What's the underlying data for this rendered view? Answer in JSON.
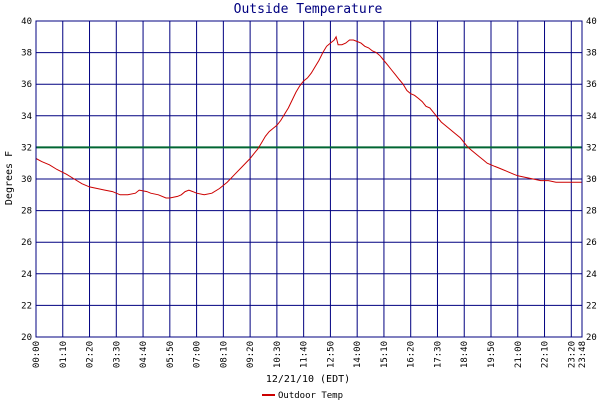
{
  "chart_data": {
    "type": "line",
    "title": "Outside Temperature",
    "xlabel": "12/21/10 (EDT)",
    "ylabel": "Degrees F",
    "ylim": [
      20,
      40
    ],
    "y_ticks": [
      20,
      22,
      24,
      26,
      28,
      30,
      32,
      34,
      36,
      38,
      40
    ],
    "x_ticks": [
      "00:00",
      "01:10",
      "02:20",
      "03:30",
      "04:40",
      "05:50",
      "07:00",
      "08:10",
      "09:20",
      "10:30",
      "11:40",
      "12:50",
      "14:00",
      "15:10",
      "16:20",
      "17:30",
      "18:40",
      "19:50",
      "21:00",
      "22:10",
      "23:20",
      "23:48"
    ],
    "x_tick_minutes": [
      0,
      70,
      140,
      210,
      280,
      350,
      420,
      490,
      560,
      630,
      700,
      770,
      840,
      910,
      980,
      1050,
      1120,
      1190,
      1260,
      1330,
      1400,
      1428
    ],
    "x_range_minutes": [
      0,
      1428
    ],
    "grid": true,
    "freezing_line": 32,
    "legend_position": "bottom-left",
    "series": [
      {
        "name": "Outdoor Temp",
        "color": "#cc0000",
        "x_minutes": [
          0,
          15,
          35,
          55,
          80,
          100,
          120,
          140,
          160,
          180,
          200,
          220,
          240,
          260,
          270,
          290,
          300,
          320,
          340,
          350,
          370,
          380,
          390,
          400,
          410,
          420,
          440,
          460,
          480,
          500,
          520,
          540,
          560,
          570,
          580,
          590,
          600,
          610,
          620,
          630,
          640,
          650,
          660,
          670,
          680,
          690,
          700,
          710,
          720,
          730,
          740,
          750,
          760,
          770,
          780,
          785,
          790,
          800,
          810,
          820,
          830,
          840,
          850,
          860,
          870,
          880,
          890,
          900,
          910,
          920,
          930,
          940,
          950,
          960,
          970,
          980,
          990,
          1000,
          1010,
          1020,
          1030,
          1040,
          1050,
          1060,
          1070,
          1080,
          1090,
          1100,
          1110,
          1120,
          1130,
          1140,
          1150,
          1160,
          1170,
          1180,
          1190,
          1200,
          1210,
          1220,
          1230,
          1240,
          1250,
          1260,
          1280,
          1300,
          1320,
          1340,
          1360,
          1380,
          1400,
          1415,
          1428
        ],
        "values": [
          31.3,
          31.1,
          30.9,
          30.6,
          30.3,
          30.0,
          29.7,
          29.5,
          29.4,
          29.3,
          29.2,
          29.0,
          29.0,
          29.1,
          29.3,
          29.2,
          29.1,
          29.0,
          28.8,
          28.8,
          28.9,
          29.0,
          29.2,
          29.3,
          29.2,
          29.1,
          29.0,
          29.1,
          29.4,
          29.8,
          30.3,
          30.8,
          31.3,
          31.6,
          31.9,
          32.3,
          32.7,
          33.0,
          33.2,
          33.4,
          33.7,
          34.1,
          34.5,
          35.0,
          35.5,
          35.9,
          36.2,
          36.4,
          36.7,
          37.1,
          37.5,
          38.0,
          38.4,
          38.6,
          38.8,
          39.0,
          38.5,
          38.5,
          38.6,
          38.8,
          38.8,
          38.7,
          38.6,
          38.4,
          38.3,
          38.1,
          38.0,
          37.8,
          37.5,
          37.2,
          36.9,
          36.6,
          36.3,
          36.0,
          35.6,
          35.4,
          35.3,
          35.1,
          34.9,
          34.6,
          34.5,
          34.2,
          33.9,
          33.6,
          33.4,
          33.2,
          33.0,
          32.8,
          32.6,
          32.3,
          32.0,
          31.8,
          31.6,
          31.4,
          31.2,
          31.0,
          30.9,
          30.8,
          30.7,
          30.6,
          30.5,
          30.4,
          30.3,
          30.2,
          30.1,
          30.0,
          29.9,
          29.9,
          29.8,
          29.8,
          29.8,
          29.8,
          29.8
        ]
      }
    ]
  }
}
